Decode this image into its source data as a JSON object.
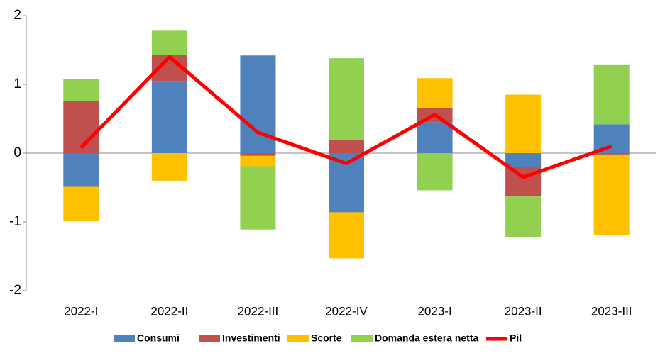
{
  "chart_data": {
    "type": "bar",
    "stacked": true,
    "categories": [
      "2022-I",
      "2022-II",
      "2022-III",
      "2022-IV",
      "2023-I",
      "2023-II",
      "2023-III"
    ],
    "series": [
      {
        "name": "Consumi",
        "color": "#4f81bd",
        "values": [
          -0.49,
          1.05,
          1.42,
          -0.86,
          0.45,
          -0.2,
          0.42
        ]
      },
      {
        "name": "Investimenti",
        "color": "#c0504d",
        "values": [
          0.76,
          0.38,
          -0.04,
          0.19,
          0.21,
          -0.43,
          -0.02
        ]
      },
      {
        "name": "Scorte",
        "color": "#ffc000",
        "values": [
          -0.5,
          -0.4,
          -0.15,
          -0.67,
          0.43,
          0.85,
          -1.17
        ]
      },
      {
        "name": "Domanda estera netta",
        "color": "#92d050",
        "values": [
          0.32,
          0.35,
          -0.92,
          1.19,
          -0.54,
          -0.59,
          0.87
        ]
      },
      {
        "name": "Pil",
        "type": "line",
        "color": "#ff0000",
        "values": [
          0.08,
          1.4,
          0.3,
          -0.15,
          0.56,
          -0.35,
          0.1
        ]
      }
    ],
    "ylim": [
      -2,
      2
    ],
    "yticks": [
      -2,
      -1,
      0,
      1,
      2
    ],
    "grid": false,
    "legend": "bottom"
  }
}
